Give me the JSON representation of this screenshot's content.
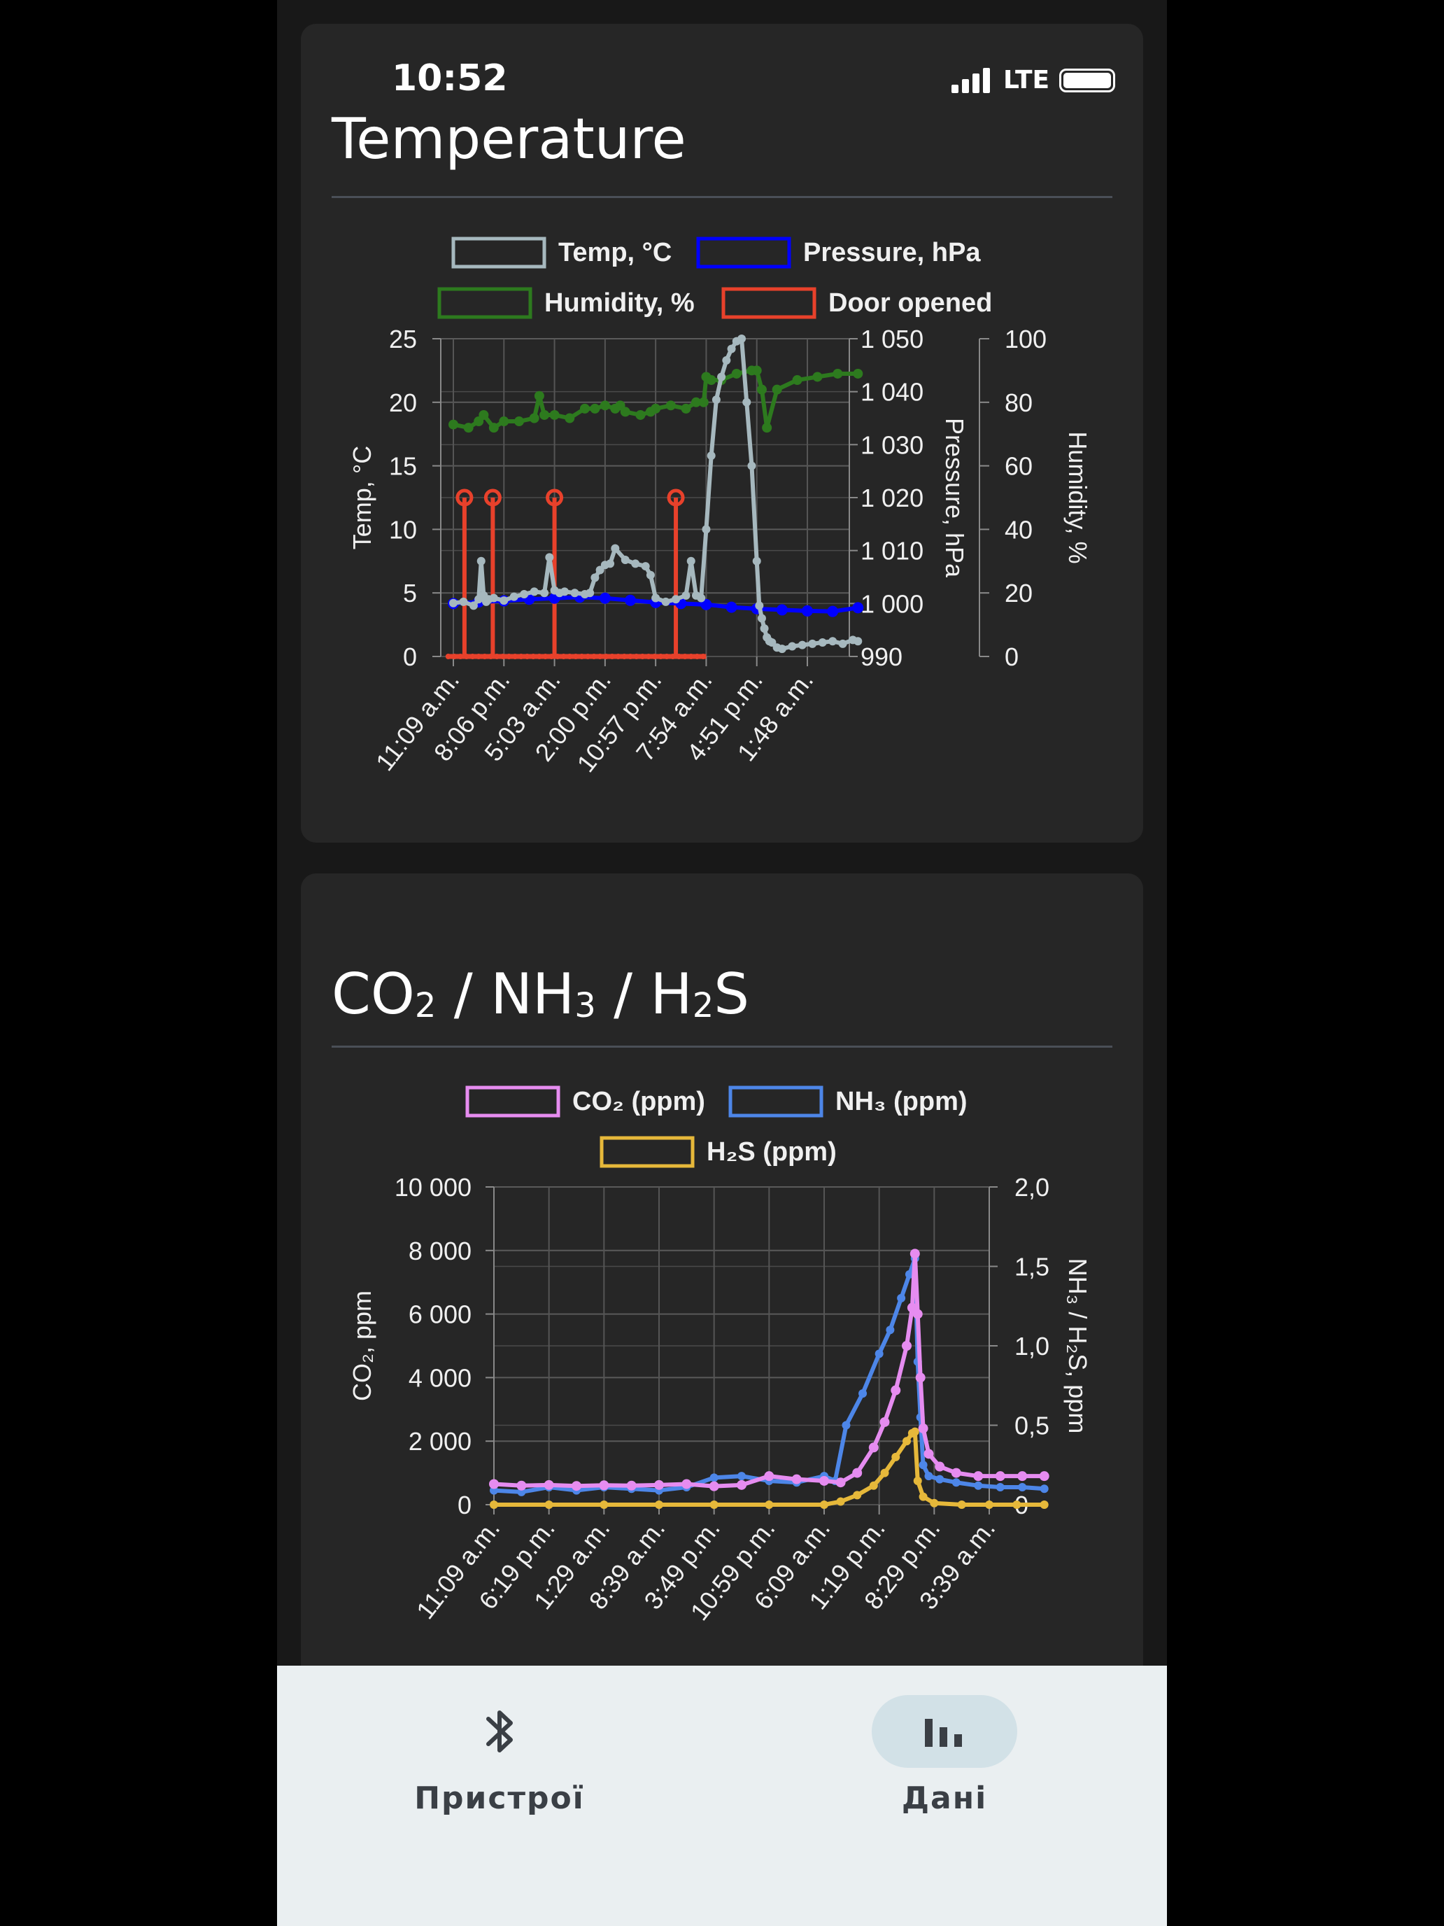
{
  "status": {
    "time": "10:52",
    "network": "LTE"
  },
  "cards": {
    "temperature": {
      "title": "Temperature"
    },
    "gas": {
      "title_parts": [
        "CO",
        "2",
        " / NH",
        "3",
        " / H",
        "2",
        "S"
      ]
    }
  },
  "nav": {
    "items": [
      {
        "label": "Пристрої",
        "icon": "bluetooth-icon",
        "active": false
      },
      {
        "label": "Дані",
        "icon": "bar-chart-icon",
        "active": true
      }
    ]
  },
  "colors": {
    "temp": "#a6b8be",
    "pressure": "#0000ff",
    "humidity": "#2d7a1e",
    "door": "#e8412b",
    "co2": "#e68cf0",
    "nh3": "#4d86e8",
    "h2s": "#e6b83a"
  },
  "chart_data": [
    {
      "type": "line",
      "legend": [
        "Temp, °C",
        "Pressure, hPa",
        "Humidity, %",
        "Door opened"
      ],
      "x_ticks": [
        "11:09 a.m.",
        "8:06 p.m.",
        "5:03 a.m.",
        "2:00 p.m.",
        "10:57 p.m.",
        "7:54 a.m.",
        "4:51 p.m.",
        "1:48 a.m."
      ],
      "axes": {
        "left": {
          "label": "Temp, °C",
          "ticks": [
            "0",
            "5",
            "10",
            "15",
            "20",
            "25"
          ],
          "range": [
            0,
            25
          ]
        },
        "right1": {
          "label": "Pressure, hPa",
          "ticks": [
            "990",
            "1 000",
            "1 010",
            "1 020",
            "1 030",
            "1 040",
            "1 050"
          ],
          "range": [
            990,
            1050
          ]
        },
        "right2": {
          "label": "Humidity, %",
          "ticks": [
            "0",
            "20",
            "40",
            "60",
            "80",
            "100"
          ],
          "range": [
            0,
            100
          ]
        }
      },
      "series": [
        {
          "name": "Temp, °C",
          "axis": "left",
          "x": [
            0,
            0.2,
            0.4,
            0.5,
            0.55,
            0.6,
            0.65,
            0.7,
            0.8,
            1,
            1.2,
            1.4,
            1.6,
            1.8,
            1.9,
            2,
            2.1,
            2.2,
            2.4,
            2.6,
            2.7,
            2.8,
            2.9,
            3,
            3.1,
            3.2,
            3.4,
            3.6,
            3.8,
            3.9,
            4,
            4.2,
            4.4,
            4.6,
            4.7,
            4.8,
            4.9,
            5,
            5.1,
            5.2,
            5.3,
            5.4,
            5.5,
            5.6,
            5.7,
            5.8,
            5.9,
            6,
            6.05,
            6.1,
            6.15,
            6.2,
            6.25,
            6.3,
            6.4,
            6.5,
            6.7,
            6.9,
            7.1,
            7.3,
            7.5,
            7.7,
            7.9,
            8
          ],
          "values": [
            4.2,
            4.3,
            4.0,
            4.5,
            7.5,
            4.8,
            4.3,
            4.5,
            4.6,
            4.4,
            4.7,
            4.9,
            5.1,
            5.0,
            7.8,
            5.2,
            5.0,
            5.1,
            5.0,
            4.9,
            5.0,
            6.2,
            6.8,
            7.2,
            7.3,
            8.5,
            7.6,
            7.3,
            7.1,
            6.4,
            4.6,
            4.3,
            4.5,
            4.8,
            7.5,
            4.8,
            4.6,
            10.0,
            15.8,
            20.2,
            22.0,
            23.3,
            24.2,
            24.8,
            25.0,
            20.0,
            15.0,
            7.5,
            4.0,
            3.0,
            2.2,
            1.5,
            1.2,
            1.1,
            0.7,
            0.6,
            0.8,
            0.9,
            1.0,
            1.1,
            1.2,
            1.0,
            1.3,
            1.2
          ]
        },
        {
          "name": "Pressure, hPa",
          "axis": "right1",
          "x": [
            0,
            0.5,
            1,
            1.5,
            2,
            2.5,
            3,
            3.5,
            4,
            4.5,
            5,
            5.5,
            6,
            6.5,
            7,
            7.5,
            8
          ],
          "values": [
            1000,
            1000.3,
            1000.5,
            1000.8,
            1001.0,
            1001.2,
            1001.0,
            1000.6,
            1000.2,
            1000.0,
            999.8,
            999.3,
            999.0,
            998.8,
            998.6,
            998.5,
            999.2
          ]
        },
        {
          "name": "Humidity, %",
          "axis": "right2",
          "x": [
            0,
            0.3,
            0.5,
            0.6,
            0.8,
            1,
            1.3,
            1.6,
            1.7,
            1.8,
            2,
            2.3,
            2.6,
            2.8,
            3,
            3.2,
            3.3,
            3.4,
            3.7,
            3.9,
            4,
            4.3,
            4.6,
            4.8,
            4.95,
            5.0,
            5.1,
            5.3,
            5.6,
            5.9,
            6.0,
            6.1,
            6.2,
            6.4,
            6.8,
            7.2,
            7.6,
            8
          ],
          "values": [
            73,
            72,
            74,
            76,
            72,
            74,
            74,
            75,
            82,
            76,
            76,
            75,
            78,
            78,
            79,
            78,
            79,
            77,
            76,
            77,
            78,
            79,
            78,
            80,
            80,
            88,
            87,
            87,
            89,
            90,
            90,
            84,
            72,
            84,
            87,
            88,
            89,
            89
          ]
        },
        {
          "name": "Door opened",
          "axis": "left",
          "type": "impulse",
          "events": [
            0.22,
            0.78,
            2.0,
            4.4
          ],
          "event_value": 12.5,
          "baseline_range": [
            -0.1,
            5.0
          ]
        }
      ]
    },
    {
      "type": "line",
      "legend": [
        "CO2 (ppm)",
        "NH3 (ppm)",
        "H2S (ppm)"
      ],
      "x_ticks": [
        "11:09 a.m.",
        "6:19 p.m.",
        "1:29 a.m.",
        "8:39 a.m.",
        "3:49 p.m.",
        "10:59 p.m.",
        "6:09 a.m.",
        "1:19 p.m.",
        "8:29 p.m.",
        "3:39 a.m."
      ],
      "axes": {
        "left": {
          "label": "CO2, ppm",
          "ticks": [
            "0",
            "2 000",
            "4 000",
            "6 000",
            "8 000",
            "10 000"
          ],
          "range": [
            0,
            10000
          ]
        },
        "right": {
          "label": "NH3 / H2S, ppm",
          "ticks": [
            "0",
            "0,5",
            "1,0",
            "1,5",
            "2,0"
          ],
          "range": [
            0,
            2.0
          ]
        }
      },
      "series": [
        {
          "name": "CO2 (ppm)",
          "axis": "left",
          "x": [
            0,
            0.5,
            1,
            1.5,
            2,
            2.5,
            3,
            3.5,
            4,
            4.5,
            5,
            5.5,
            6,
            6.3,
            6.6,
            6.9,
            7.1,
            7.3,
            7.5,
            7.6,
            7.65,
            7.7,
            7.75,
            7.8,
            7.9,
            8.1,
            8.4,
            8.8,
            9.2,
            9.6,
            10
          ],
          "values": [
            650,
            600,
            620,
            590,
            610,
            600,
            620,
            650,
            580,
            620,
            900,
            800,
            750,
            700,
            1000,
            1800,
            2600,
            3600,
            5000,
            6200,
            7900,
            6000,
            4000,
            2400,
            1600,
            1200,
            1000,
            900,
            900,
            900,
            900
          ]
        },
        {
          "name": "NH3 (ppm)",
          "axis": "right",
          "x": [
            0,
            0.5,
            1,
            1.5,
            2,
            2.5,
            3,
            3.5,
            4,
            4.5,
            5,
            5.5,
            6,
            6.2,
            6.4,
            6.7,
            7.0,
            7.2,
            7.4,
            7.55,
            7.65,
            7.7,
            7.75,
            7.8,
            7.9,
            8.1,
            8.4,
            8.8,
            9.2,
            9.6,
            10
          ],
          "values": [
            0.09,
            0.08,
            0.11,
            0.09,
            0.11,
            0.1,
            0.09,
            0.11,
            0.17,
            0.18,
            0.15,
            0.14,
            0.18,
            0.15,
            0.5,
            0.7,
            0.95,
            1.1,
            1.3,
            1.45,
            1.55,
            0.9,
            0.55,
            0.25,
            0.18,
            0.16,
            0.14,
            0.12,
            0.11,
            0.11,
            0.1
          ]
        },
        {
          "name": "H2S (ppm)",
          "axis": "right",
          "x": [
            0,
            1,
            2,
            3,
            4,
            5,
            6,
            6.3,
            6.6,
            6.9,
            7.1,
            7.3,
            7.5,
            7.6,
            7.65,
            7.7,
            7.8,
            8.0,
            8.5,
            9,
            9.5,
            10
          ],
          "values": [
            0,
            0,
            0,
            0,
            0,
            0,
            0,
            0.02,
            0.06,
            0.12,
            0.2,
            0.3,
            0.4,
            0.45,
            0.46,
            0.15,
            0.05,
            0.01,
            0,
            0,
            0,
            0
          ]
        }
      ]
    }
  ]
}
